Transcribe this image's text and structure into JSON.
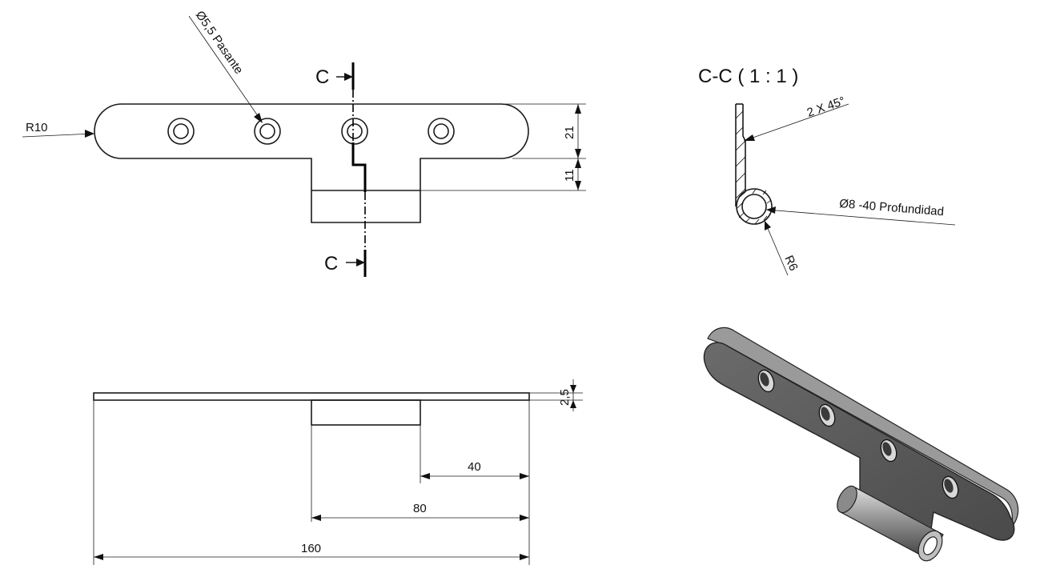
{
  "top_view": {
    "radius_label": "R10",
    "hole_label": "Ø5,5 Pasante",
    "dim_21": "21",
    "dim_11": "11",
    "section_marker": "C"
  },
  "section_view": {
    "title": "C-C ( 1 : 1 )",
    "chamfer_label": "2 X 45°",
    "bore_label": "Ø8 -40 Profundidad",
    "radius_label": "R6"
  },
  "front_view": {
    "dim_thickness": "2,5",
    "dim_40": "40",
    "dim_80": "80",
    "dim_160": "160"
  },
  "colors": {
    "line": "#1a1a1a",
    "iso_face": "#5a5a5a",
    "iso_edge": "#9a9a9a"
  }
}
